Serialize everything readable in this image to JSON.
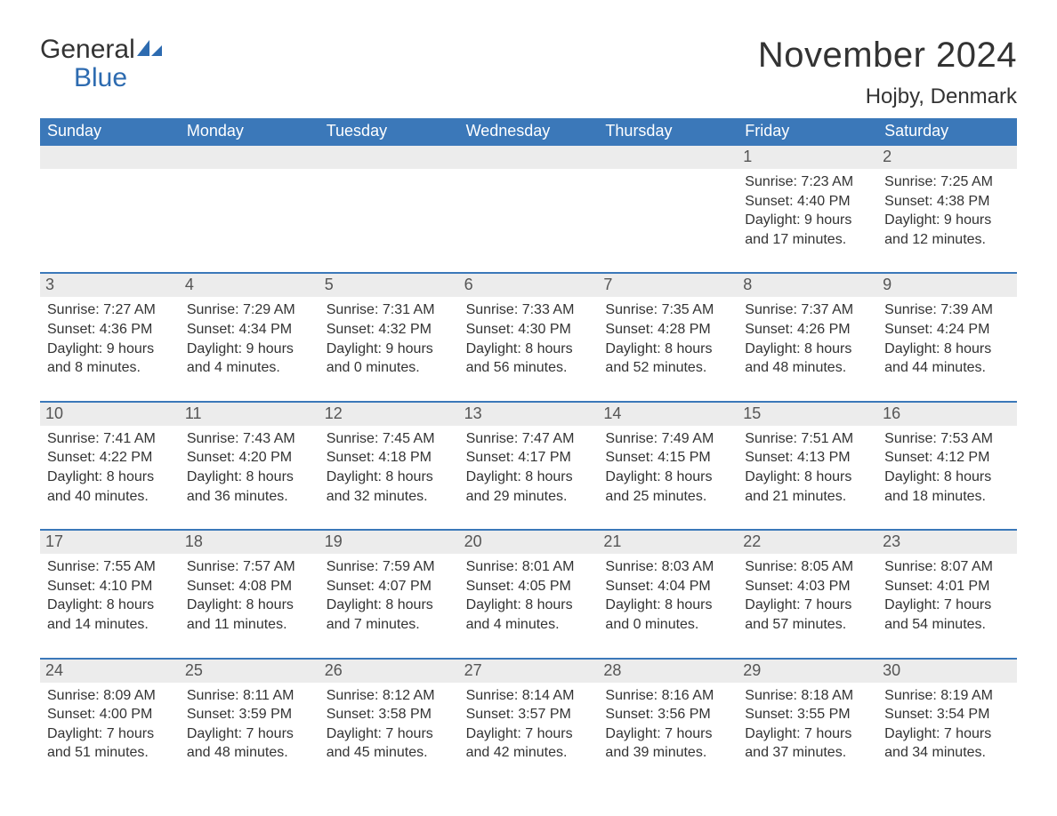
{
  "logo": {
    "word1": "General",
    "word2": "Blue"
  },
  "title": "November 2024",
  "location": "Hojby, Denmark",
  "colors": {
    "header_bg": "#3b78b9",
    "header_text": "#ffffff",
    "daynum_bg": "#ececec",
    "rule": "#3b78b9",
    "brand_blue": "#2d6bb0",
    "text": "#333333",
    "page_bg": "#ffffff"
  },
  "dow": [
    "Sunday",
    "Monday",
    "Tuesday",
    "Wednesday",
    "Thursday",
    "Friday",
    "Saturday"
  ],
  "labels": {
    "sunrise": "Sunrise:",
    "sunset": "Sunset:",
    "daylight": "Daylight:"
  },
  "weeks": [
    [
      {
        "n": "",
        "empty": true
      },
      {
        "n": "",
        "empty": true
      },
      {
        "n": "",
        "empty": true
      },
      {
        "n": "",
        "empty": true
      },
      {
        "n": "",
        "empty": true
      },
      {
        "n": "1",
        "sunrise": "7:23 AM",
        "sunset": "4:40 PM",
        "daylight": "9 hours and 17 minutes."
      },
      {
        "n": "2",
        "sunrise": "7:25 AM",
        "sunset": "4:38 PM",
        "daylight": "9 hours and 12 minutes."
      }
    ],
    [
      {
        "n": "3",
        "sunrise": "7:27 AM",
        "sunset": "4:36 PM",
        "daylight": "9 hours and 8 minutes."
      },
      {
        "n": "4",
        "sunrise": "7:29 AM",
        "sunset": "4:34 PM",
        "daylight": "9 hours and 4 minutes."
      },
      {
        "n": "5",
        "sunrise": "7:31 AM",
        "sunset": "4:32 PM",
        "daylight": "9 hours and 0 minutes."
      },
      {
        "n": "6",
        "sunrise": "7:33 AM",
        "sunset": "4:30 PM",
        "daylight": "8 hours and 56 minutes."
      },
      {
        "n": "7",
        "sunrise": "7:35 AM",
        "sunset": "4:28 PM",
        "daylight": "8 hours and 52 minutes."
      },
      {
        "n": "8",
        "sunrise": "7:37 AM",
        "sunset": "4:26 PM",
        "daylight": "8 hours and 48 minutes."
      },
      {
        "n": "9",
        "sunrise": "7:39 AM",
        "sunset": "4:24 PM",
        "daylight": "8 hours and 44 minutes."
      }
    ],
    [
      {
        "n": "10",
        "sunrise": "7:41 AM",
        "sunset": "4:22 PM",
        "daylight": "8 hours and 40 minutes."
      },
      {
        "n": "11",
        "sunrise": "7:43 AM",
        "sunset": "4:20 PM",
        "daylight": "8 hours and 36 minutes."
      },
      {
        "n": "12",
        "sunrise": "7:45 AM",
        "sunset": "4:18 PM",
        "daylight": "8 hours and 32 minutes."
      },
      {
        "n": "13",
        "sunrise": "7:47 AM",
        "sunset": "4:17 PM",
        "daylight": "8 hours and 29 minutes."
      },
      {
        "n": "14",
        "sunrise": "7:49 AM",
        "sunset": "4:15 PM",
        "daylight": "8 hours and 25 minutes."
      },
      {
        "n": "15",
        "sunrise": "7:51 AM",
        "sunset": "4:13 PM",
        "daylight": "8 hours and 21 minutes."
      },
      {
        "n": "16",
        "sunrise": "7:53 AM",
        "sunset": "4:12 PM",
        "daylight": "8 hours and 18 minutes."
      }
    ],
    [
      {
        "n": "17",
        "sunrise": "7:55 AM",
        "sunset": "4:10 PM",
        "daylight": "8 hours and 14 minutes."
      },
      {
        "n": "18",
        "sunrise": "7:57 AM",
        "sunset": "4:08 PM",
        "daylight": "8 hours and 11 minutes."
      },
      {
        "n": "19",
        "sunrise": "7:59 AM",
        "sunset": "4:07 PM",
        "daylight": "8 hours and 7 minutes."
      },
      {
        "n": "20",
        "sunrise": "8:01 AM",
        "sunset": "4:05 PM",
        "daylight": "8 hours and 4 minutes."
      },
      {
        "n": "21",
        "sunrise": "8:03 AM",
        "sunset": "4:04 PM",
        "daylight": "8 hours and 0 minutes."
      },
      {
        "n": "22",
        "sunrise": "8:05 AM",
        "sunset": "4:03 PM",
        "daylight": "7 hours and 57 minutes."
      },
      {
        "n": "23",
        "sunrise": "8:07 AM",
        "sunset": "4:01 PM",
        "daylight": "7 hours and 54 minutes."
      }
    ],
    [
      {
        "n": "24",
        "sunrise": "8:09 AM",
        "sunset": "4:00 PM",
        "daylight": "7 hours and 51 minutes."
      },
      {
        "n": "25",
        "sunrise": "8:11 AM",
        "sunset": "3:59 PM",
        "daylight": "7 hours and 48 minutes."
      },
      {
        "n": "26",
        "sunrise": "8:12 AM",
        "sunset": "3:58 PM",
        "daylight": "7 hours and 45 minutes."
      },
      {
        "n": "27",
        "sunrise": "8:14 AM",
        "sunset": "3:57 PM",
        "daylight": "7 hours and 42 minutes."
      },
      {
        "n": "28",
        "sunrise": "8:16 AM",
        "sunset": "3:56 PM",
        "daylight": "7 hours and 39 minutes."
      },
      {
        "n": "29",
        "sunrise": "8:18 AM",
        "sunset": "3:55 PM",
        "daylight": "7 hours and 37 minutes."
      },
      {
        "n": "30",
        "sunrise": "8:19 AM",
        "sunset": "3:54 PM",
        "daylight": "7 hours and 34 minutes."
      }
    ]
  ]
}
